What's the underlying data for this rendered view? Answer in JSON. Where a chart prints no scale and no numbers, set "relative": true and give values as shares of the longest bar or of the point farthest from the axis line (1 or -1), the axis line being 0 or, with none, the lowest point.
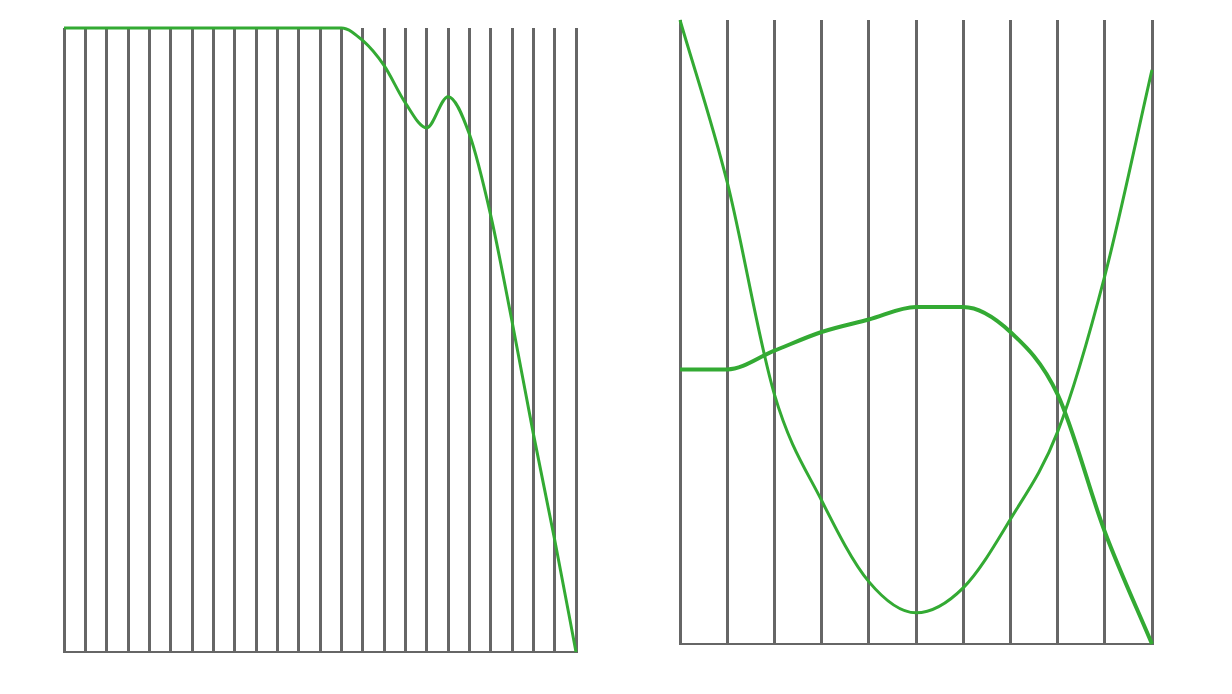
{
  "chart_data": [
    {
      "type": "line",
      "relative": true,
      "grid": "x",
      "marker": "none",
      "line_style": "solid",
      "categories": [
        null,
        null,
        null,
        null,
        null,
        null,
        null,
        null,
        null,
        null,
        null,
        null,
        null,
        null,
        null,
        null,
        null,
        null,
        null,
        null,
        null,
        null,
        null,
        null,
        null
      ],
      "series": [
        {
          "color": "#33aa33",
          "values": [
            1.0,
            1.0,
            1.0,
            1.0,
            1.0,
            1.0,
            1.0,
            1.0,
            1.0,
            1.0,
            1.0,
            1.0,
            1.0,
            1.0,
            0.98,
            0.94,
            0.88,
            0.84,
            0.89,
            0.83,
            0.7,
            0.53,
            0.35,
            0.18,
            0.0
          ]
        }
      ]
    },
    {
      "type": "line",
      "relative": true,
      "grid": "x",
      "marker": "none",
      "line_style": "solid",
      "categories": [
        null,
        null,
        null,
        null,
        null,
        null,
        null,
        null,
        null,
        null,
        null
      ],
      "series": [
        {
          "color": "#33aa33",
          "values": [
            1.0,
            0.74,
            0.4,
            0.23,
            0.1,
            0.05,
            0.09,
            0.2,
            0.34,
            0.59,
            0.92
          ]
        },
        {
          "color": "#33aa33",
          "values": [
            0.44,
            0.44,
            0.47,
            0.5,
            0.52,
            0.54,
            0.54,
            0.5,
            0.4,
            0.18,
            0.0
          ]
        }
      ]
    }
  ]
}
